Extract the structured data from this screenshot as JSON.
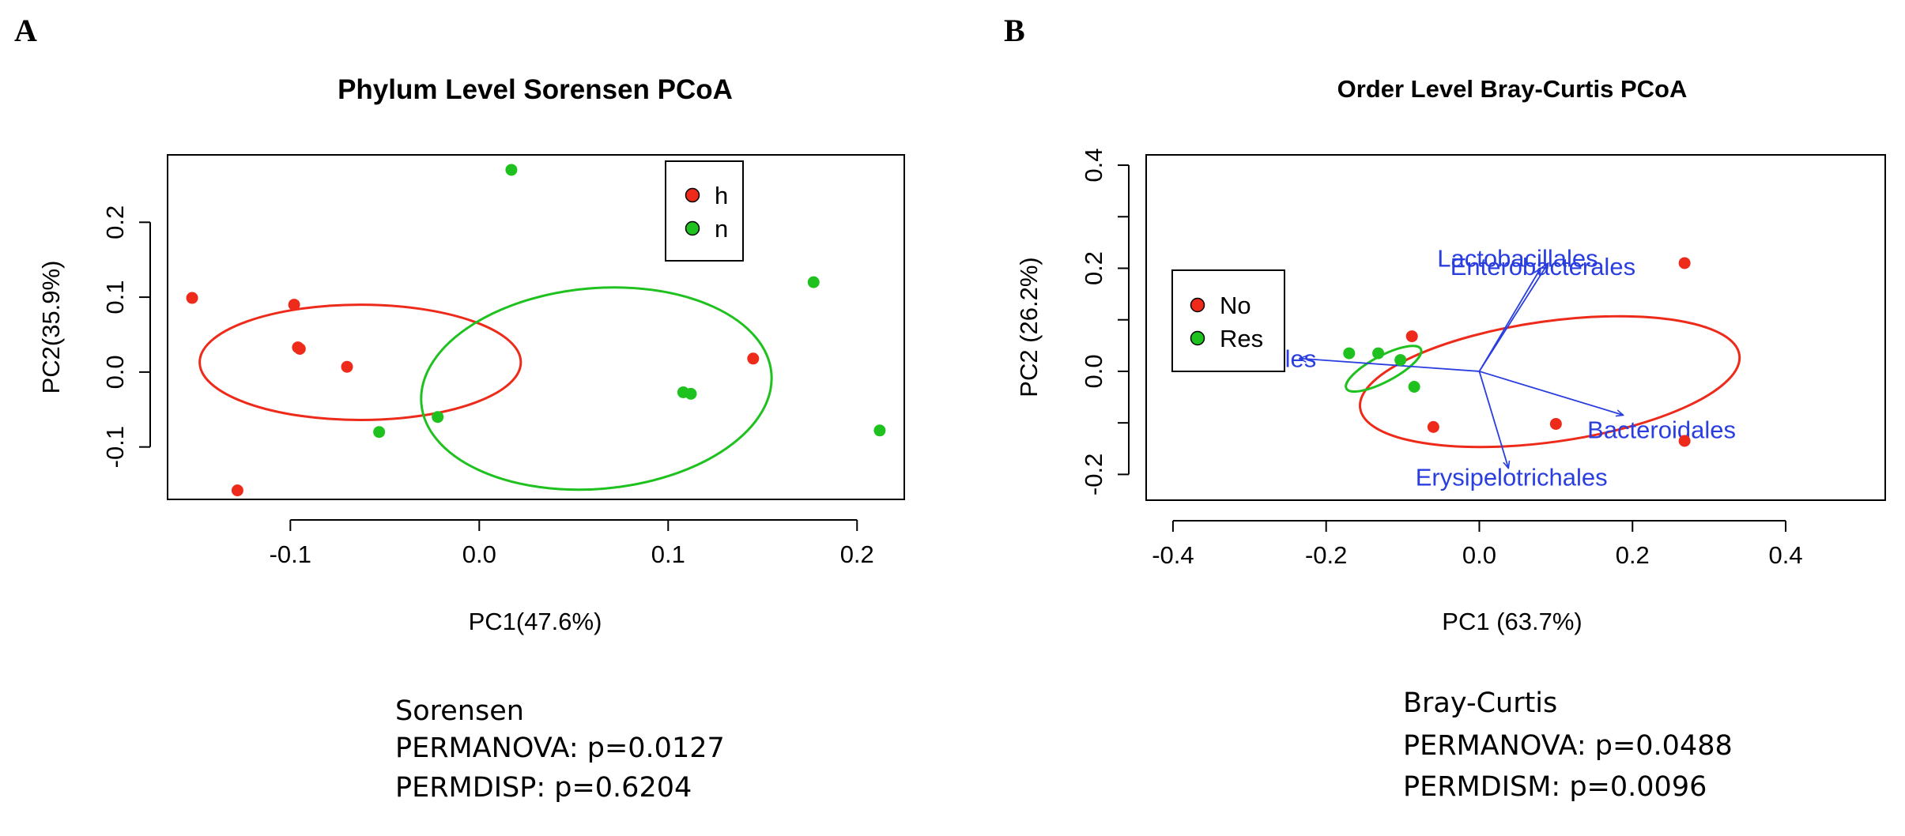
{
  "colors": {
    "red": "#ee2b1b",
    "green": "#1fc11f",
    "vector": "#2a3ee0",
    "axis": "#000000"
  },
  "chart_data": [
    {
      "panel": "A",
      "type": "scatter",
      "title": "Phylum Level Sorensen PCoA",
      "xlabel": "PC1(47.6%)",
      "ylabel": "PC2(35.9%)",
      "xlim": [
        -0.165,
        0.225
      ],
      "ylim": [
        -0.17,
        0.29
      ],
      "xticks": [
        -0.1,
        0.0,
        0.1,
        0.2
      ],
      "xtick_labels": [
        "-0.1",
        "0.0",
        "0.1",
        "0.2"
      ],
      "yticks": [
        -0.1,
        0.0,
        0.1,
        0.2
      ],
      "ytick_labels": [
        "-0.1",
        "0.0",
        "0.1",
        "0.2"
      ],
      "legend": {
        "position": "top-right",
        "entries": [
          {
            "label": "h",
            "color": "#ee2b1b"
          },
          {
            "label": "n",
            "color": "#1fc11f"
          }
        ]
      },
      "series": [
        {
          "name": "h",
          "color": "#ee2b1b",
          "points": [
            [
              -0.152,
              0.099
            ],
            [
              -0.098,
              0.09
            ],
            [
              -0.096,
              0.033
            ],
            [
              -0.07,
              0.007
            ],
            [
              -0.128,
              -0.158
            ],
            [
              0.145,
              0.018
            ],
            [
              -0.095,
              0.031
            ]
          ]
        },
        {
          "name": "n",
          "color": "#1fc11f",
          "points": [
            [
              0.017,
              0.27
            ],
            [
              0.177,
              0.12
            ],
            [
              0.212,
              -0.078
            ],
            [
              0.108,
              -0.027
            ],
            [
              0.112,
              -0.029
            ],
            [
              -0.053,
              -0.08
            ],
            [
              -0.022,
              -0.06
            ]
          ]
        }
      ],
      "ellipses": [
        {
          "group": "h",
          "color": "#ee2b1b",
          "cx": -0.063,
          "cy": 0.013,
          "rx": 0.085,
          "ry": 0.077,
          "angle": 0
        },
        {
          "group": "n",
          "color": "#1fc11f",
          "cx": 0.062,
          "cy": -0.022,
          "rx": 0.093,
          "ry": 0.134,
          "angle": -5
        }
      ],
      "caption": [
        "Sorensen",
        "PERMANOVA: p=0.0127",
        "PERMDISP: p=0.6204"
      ]
    },
    {
      "panel": "B",
      "type": "scatter",
      "title": "Order Level Bray-Curtis PCoA",
      "xlabel": "PC1 (63.7%)",
      "ylabel": "PC2 (26.2%)",
      "xlim": [
        -0.435,
        0.53
      ],
      "ylim": [
        -0.25,
        0.42
      ],
      "xticks": [
        -0.4,
        -0.2,
        0.0,
        0.2,
        0.4
      ],
      "xtick_labels": [
        "-0.4",
        "-0.2",
        "0.0",
        "0.2",
        "0.4"
      ],
      "yticks": [
        -0.2,
        0.0,
        0.2,
        0.4
      ],
      "ytick_labels": [
        "-0.2",
        "0.0",
        "0.2",
        "0.4"
      ],
      "yminor": [
        -0.1,
        0.1,
        0.3
      ],
      "legend": {
        "position": "left",
        "entries": [
          {
            "label": "No",
            "color": "#ee2b1b"
          },
          {
            "label": "Res",
            "color": "#1fc11f"
          }
        ]
      },
      "series": [
        {
          "name": "No",
          "color": "#ee2b1b",
          "points": [
            [
              0.268,
              0.21
            ],
            [
              -0.088,
              0.068
            ],
            [
              0.1,
              -0.102
            ],
            [
              0.268,
              -0.135
            ],
            [
              -0.06,
              -0.108
            ]
          ]
        },
        {
          "name": "Res",
          "color": "#1fc11f",
          "points": [
            [
              -0.17,
              0.035
            ],
            [
              -0.132,
              0.035
            ],
            [
              -0.103,
              0.022
            ],
            [
              -0.085,
              -0.03
            ]
          ]
        }
      ],
      "ellipses": [
        {
          "group": "No",
          "color": "#ee2b1b",
          "cx": 0.092,
          "cy": -0.02,
          "rx": 0.25,
          "ry": 0.117,
          "angle": -8
        },
        {
          "group": "Res",
          "color": "#1fc11f",
          "cx": -0.125,
          "cy": 0.005,
          "rx": 0.055,
          "ry": 0.025,
          "angle": -28
        }
      ],
      "vectors": [
        {
          "label": "Lactobacillales",
          "end": [
            0.09,
            0.21
          ],
          "label_pos": [
            0.05,
            0.22
          ],
          "anchor": "middle"
        },
        {
          "label": "Enterobacterales",
          "end": [
            0.08,
            0.2
          ],
          "label_pos": [
            0.083,
            0.204
          ],
          "anchor": "middle"
        },
        {
          "label": "Clostridiales",
          "end": [
            -0.235,
            0.025
          ],
          "label_pos": [
            -0.3,
            0.025
          ],
          "anchor": "middle"
        },
        {
          "label": "Bacteroidales",
          "end": [
            0.188,
            -0.085
          ],
          "label_pos": [
            0.238,
            -0.113
          ],
          "anchor": "middle"
        },
        {
          "label": "Erysipelotrichales",
          "end": [
            0.038,
            -0.188
          ],
          "label_pos": [
            0.042,
            -0.205
          ],
          "anchor": "middle"
        }
      ],
      "vector_origin": [
        0.0,
        0.0
      ],
      "caption": [
        "Bray-Curtis",
        "PERMANOVA: p=0.0488",
        "PERMDISM: p=0.0096"
      ]
    }
  ]
}
